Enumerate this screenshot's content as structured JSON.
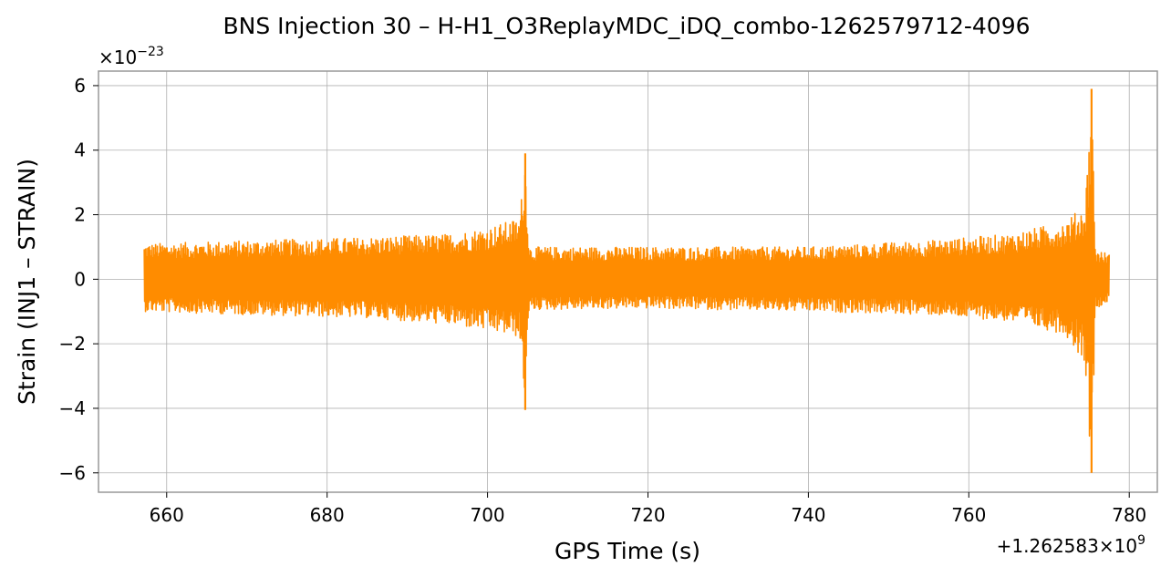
{
  "chart_data": {
    "type": "line",
    "title": "BNS Injection 30 – H-H1_O3ReplayMDC_iDQ_combo-1262579712-4096",
    "xlabel": "GPS Time (s)",
    "ylabel": "Strain (INJ1 – STRAIN)",
    "x_offset_label": "+1.262583×10",
    "x_offset_exponent": "9",
    "y_multiplier_label": "×10",
    "y_multiplier_exponent": "−23",
    "xlim": [
      651.5,
      783.5
    ],
    "ylim": [
      -6.6,
      6.45
    ],
    "x_ticks": [
      660,
      680,
      700,
      720,
      740,
      760,
      780
    ],
    "y_ticks": [
      -6,
      -4,
      -2,
      0,
      2,
      4,
      6
    ],
    "x_tick_labels": [
      "660",
      "680",
      "700",
      "720",
      "740",
      "760",
      "780"
    ],
    "y_tick_labels": [
      "−6",
      "−4",
      "−2",
      "0",
      "2",
      "4",
      "6"
    ],
    "grid": true,
    "series": [
      {
        "color": "#ff8c00",
        "x_start": 657.2,
        "x_end": 777.5,
        "envelope": [
          {
            "x": 657.2,
            "y_min": -1.0,
            "y_max": 1.1
          },
          {
            "x": 670.0,
            "y_min": -1.1,
            "y_max": 1.2
          },
          {
            "x": 685.0,
            "y_min": -1.2,
            "y_max": 1.3
          },
          {
            "x": 695.0,
            "y_min": -1.4,
            "y_max": 1.4
          },
          {
            "x": 700.0,
            "y_min": -1.6,
            "y_max": 1.6
          },
          {
            "x": 704.0,
            "y_min": -1.8,
            "y_max": 1.9
          },
          {
            "x": 704.7,
            "y_min": -4.05,
            "y_max": 3.9
          },
          {
            "x": 705.2,
            "y_min": -0.95,
            "y_max": 1.0
          },
          {
            "x": 720.0,
            "y_min": -0.9,
            "y_max": 1.0
          },
          {
            "x": 740.0,
            "y_min": -1.0,
            "y_max": 1.0
          },
          {
            "x": 755.0,
            "y_min": -1.1,
            "y_max": 1.2
          },
          {
            "x": 765.0,
            "y_min": -1.3,
            "y_max": 1.4
          },
          {
            "x": 772.0,
            "y_min": -1.7,
            "y_max": 1.8
          },
          {
            "x": 774.5,
            "y_min": -2.6,
            "y_max": 2.3
          },
          {
            "x": 775.3,
            "y_min": -6.0,
            "y_max": 5.9
          },
          {
            "x": 775.8,
            "y_min": -0.9,
            "y_max": 0.9
          },
          {
            "x": 777.5,
            "y_min": -0.7,
            "y_max": 0.8
          }
        ]
      }
    ]
  }
}
